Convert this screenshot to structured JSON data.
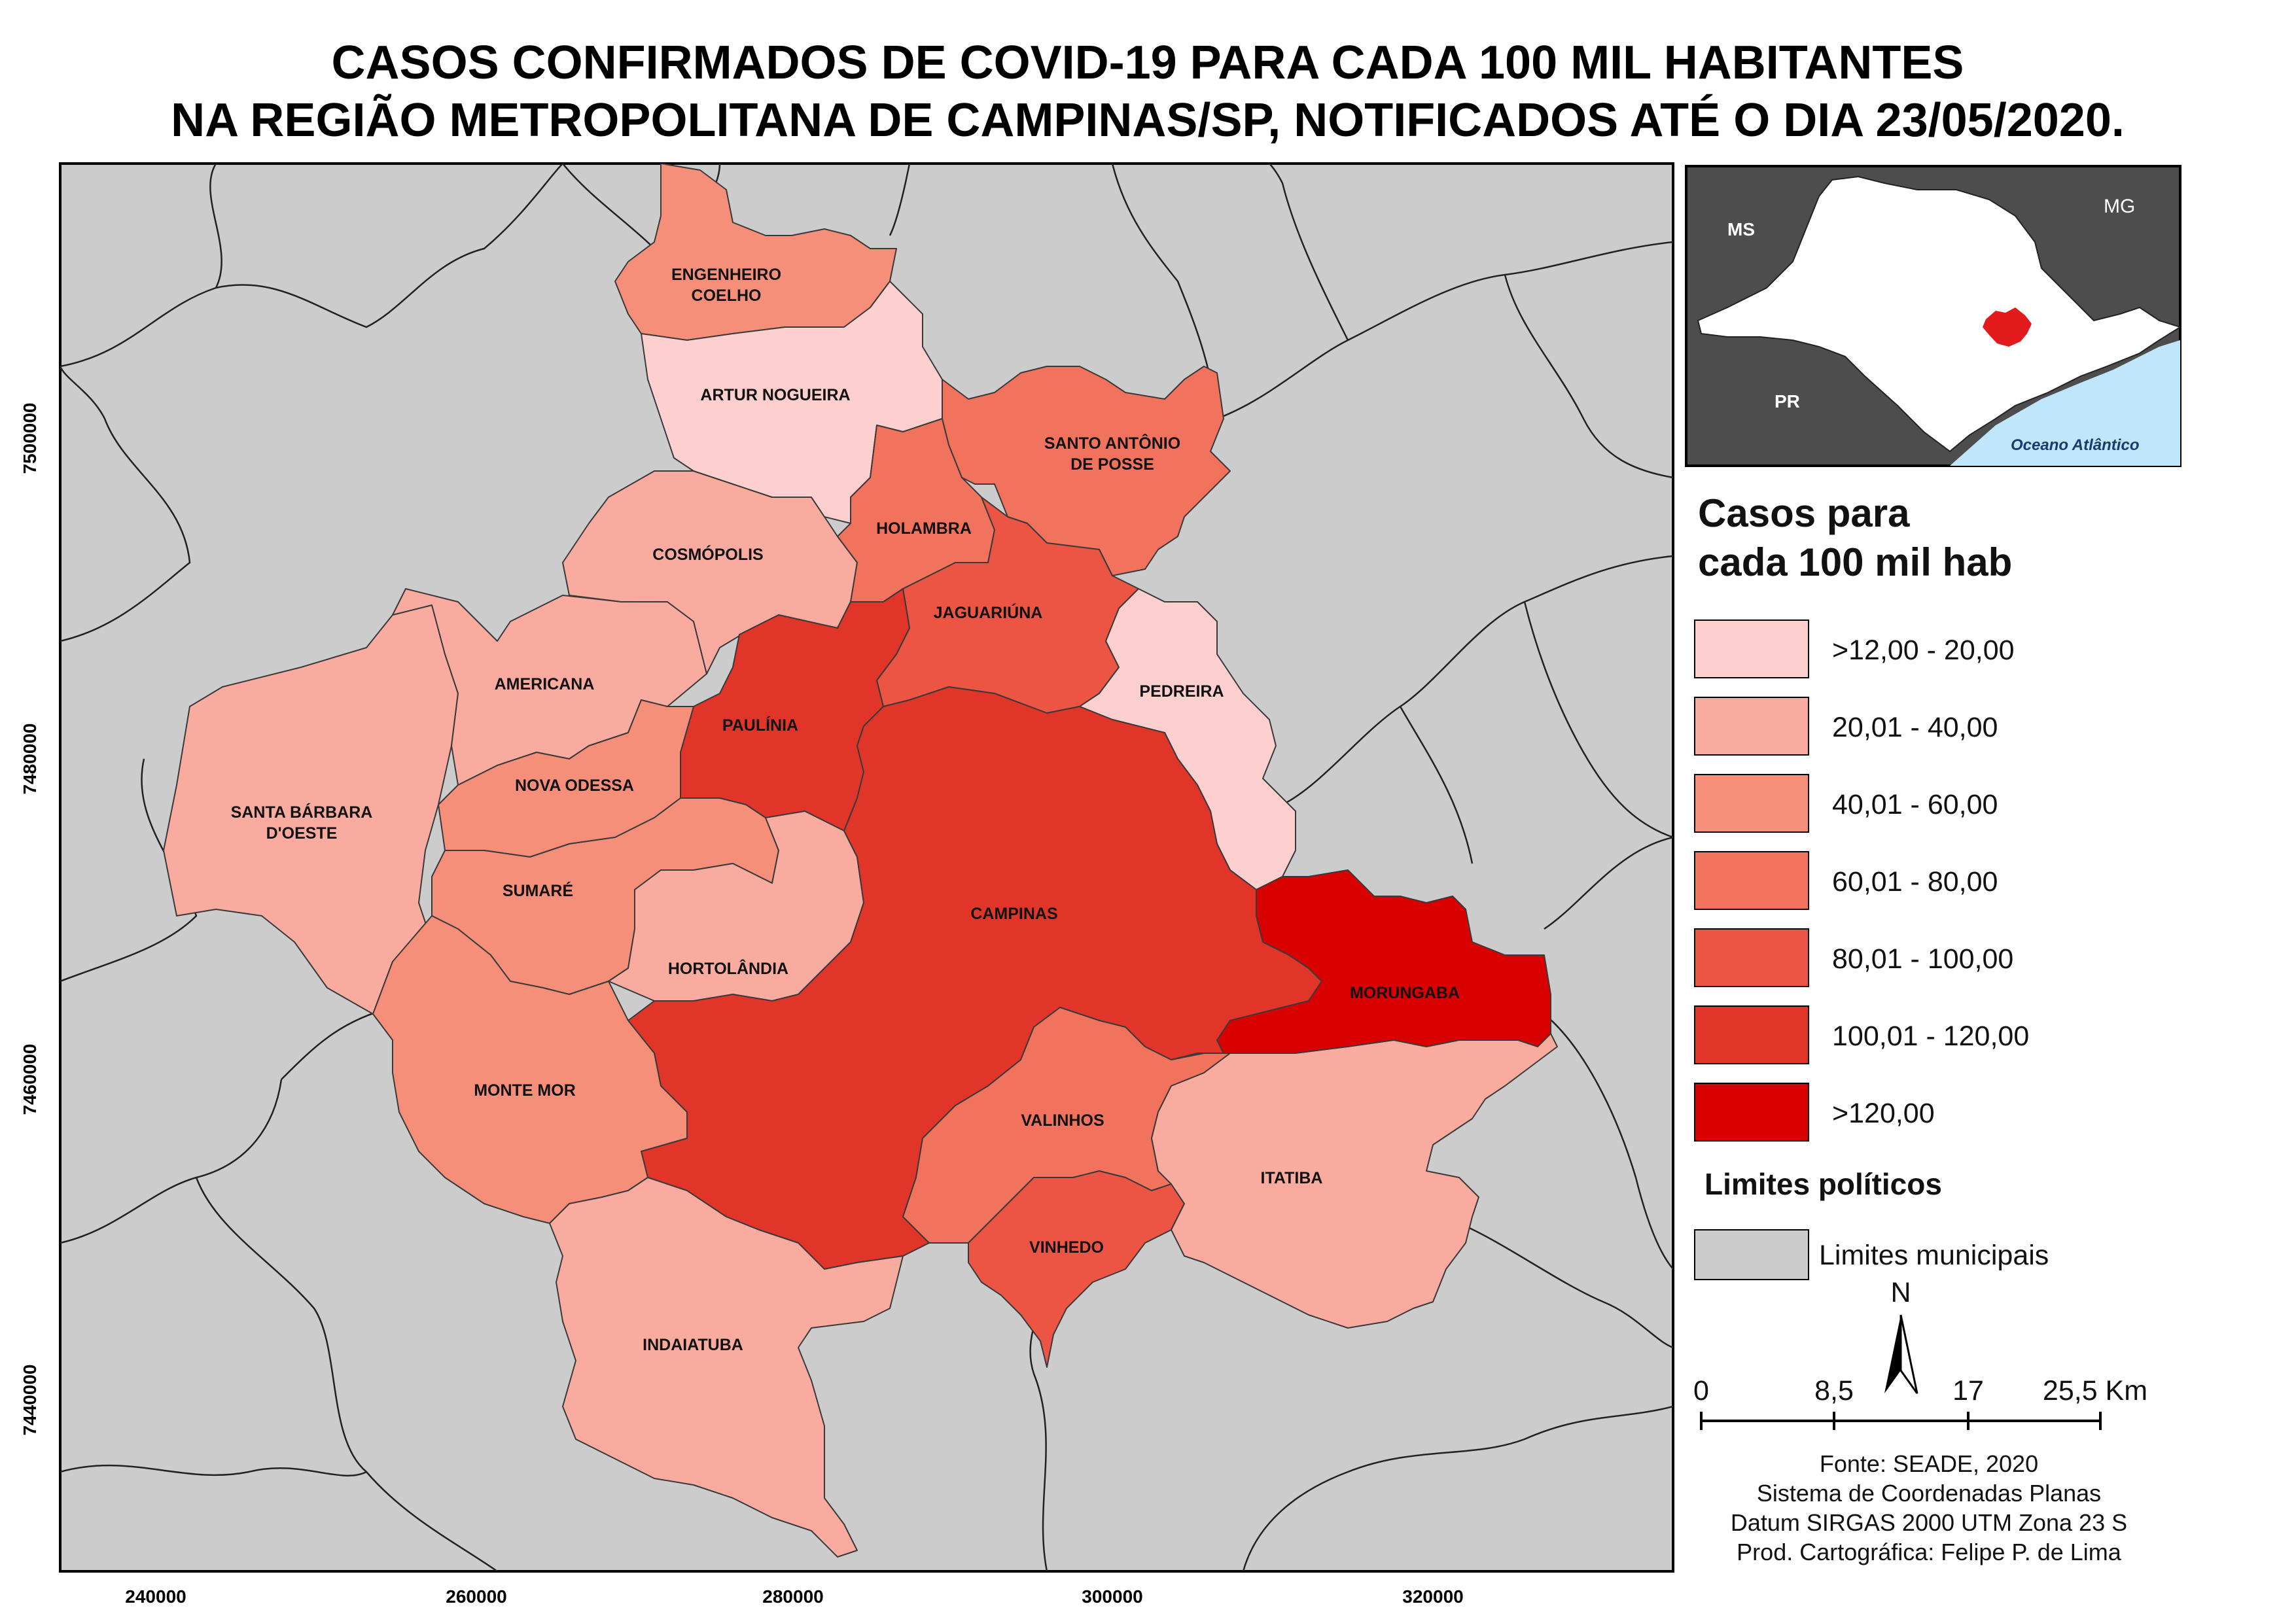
{
  "title": {
    "line1": "CASOS CONFIRMADOS DE COVID-19 PARA CADA 100 MIL HABITANTES",
    "line2": "NA REGIÃO METROPOLITANA DE CAMPINAS/SP, NOTIFICADOS ATÉ O DIA 23/05/2020."
  },
  "axes": {
    "x_ticks": [
      "240000",
      "260000",
      "280000",
      "300000",
      "320000"
    ],
    "y_ticks": [
      "7500000",
      "7480000",
      "7460000",
      "7440000"
    ]
  },
  "municipalities": [
    {
      "key": "engenheiro_coelho",
      "line1": "ENGENHEIRO",
      "line2": "COELHO",
      "class": 2
    },
    {
      "key": "artur_nogueira",
      "line1": "ARTUR NOGUEIRA",
      "line2": "",
      "class": 0
    },
    {
      "key": "santo_antonio",
      "line1": "SANTO ANTÔNIO",
      "line2": "DE POSSE",
      "class": 3
    },
    {
      "key": "holambra",
      "line1": "HOLAMBRA",
      "line2": "",
      "class": 3
    },
    {
      "key": "cosmopolis",
      "line1": "COSMÓPOLIS",
      "line2": "",
      "class": 1
    },
    {
      "key": "jaguariuna",
      "line1": "JAGUARIÚNA",
      "line2": "",
      "class": 4
    },
    {
      "key": "americana",
      "line1": "AMERICANA",
      "line2": "",
      "class": 1
    },
    {
      "key": "pedreira",
      "line1": "PEDREIRA",
      "line2": "",
      "class": 0
    },
    {
      "key": "paulinia",
      "line1": "PAULÍNIA",
      "line2": "",
      "class": 5
    },
    {
      "key": "santa_barbara",
      "line1": "SANTA BÁRBARA",
      "line2": "D'OESTE",
      "class": 1
    },
    {
      "key": "nova_odessa",
      "line1": "NOVA ODESSA",
      "line2": "",
      "class": 2
    },
    {
      "key": "sumare",
      "line1": "SUMARÉ",
      "line2": "",
      "class": 2
    },
    {
      "key": "hortolandia",
      "line1": "HORTOLÂNDIA",
      "line2": "",
      "class": 1
    },
    {
      "key": "campinas",
      "line1": "CAMPINAS",
      "line2": "",
      "class": 5
    },
    {
      "key": "morungaba",
      "line1": "MORUNGABA",
      "line2": "",
      "class": 6
    },
    {
      "key": "monte_mor",
      "line1": "MONTE MOR",
      "line2": "",
      "class": 2
    },
    {
      "key": "valinhos",
      "line1": "VALINHOS",
      "line2": "",
      "class": 3
    },
    {
      "key": "itatiba",
      "line1": "ITATIBA",
      "line2": "",
      "class": 1
    },
    {
      "key": "vinhedo",
      "line1": "VINHEDO",
      "line2": "",
      "class": 4
    },
    {
      "key": "indaiatuba",
      "line1": "INDAIATUBA",
      "line2": "",
      "class": 1
    }
  ],
  "legend": {
    "title_line1": "Casos para",
    "title_line2": "cada 100 mil hab",
    "classes": [
      {
        "label": ">12,00 - 20,00",
        "color": "#fdcfcf"
      },
      {
        "label": "20,01 - 40,00",
        "color": "#f9aba0"
      },
      {
        "label": "40,01 - 60,00",
        "color": "#f68f7a"
      },
      {
        "label": "60,01 - 80,00",
        "color": "#f2735d"
      },
      {
        "label": "80,01 - 100,00",
        "color": "#ec5444"
      },
      {
        "label": "100,01 - 120,00",
        "color": "#e2352a"
      },
      {
        "label": ">120,00",
        "color": "#d90000"
      }
    ],
    "limits_title": "Limites políticos",
    "limits_label": "Limites municipais",
    "limits_color": "#cccccc"
  },
  "inset": {
    "labels": {
      "ms": "MS",
      "mg": "MG",
      "pr": "PR",
      "ocean": "Oceano Atlântico"
    },
    "colors": {
      "land": "#4d4d4d",
      "sp": "#ffffff",
      "rmc": "#e31a1c",
      "ocean": "#bfe6fb"
    }
  },
  "north": "N",
  "scale": {
    "ticks": [
      "0",
      "8,5",
      "17",
      "25,5 Km"
    ]
  },
  "credits": [
    "Fonte: SEADE, 2020",
    "Sistema de Coordenadas Planas",
    "Datum SIRGAS 2000 UTM Zona 23 S",
    "Prod. Cartográfica: Felipe P. de Lima"
  ]
}
